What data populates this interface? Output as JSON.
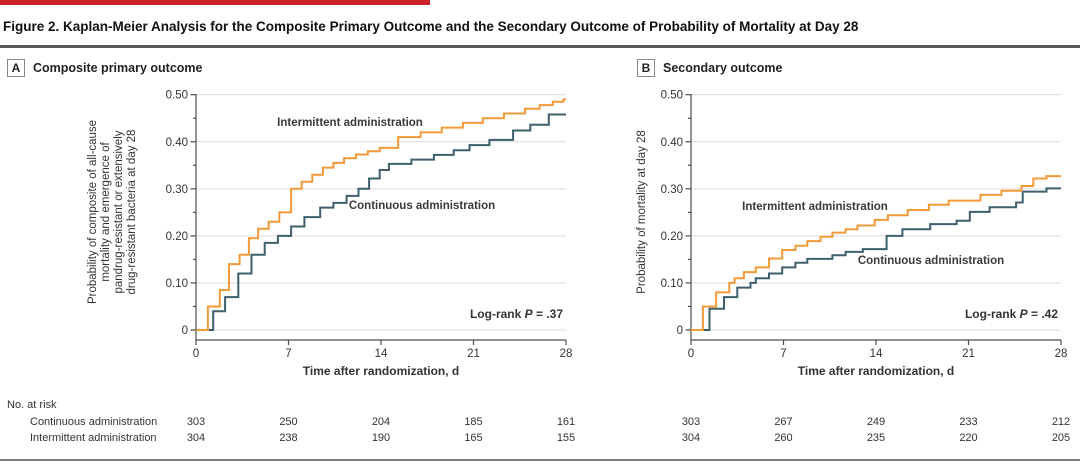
{
  "figure": {
    "title": "Figure 2. Kaplan-Meier Analysis for the Composite Primary Outcome and the Secondary Outcome of Probability of Mortality at Day 28",
    "accent_bar_color": "#cc2128"
  },
  "at_risk_header": "No. at risk",
  "colors": {
    "intermittent": "#f29a38",
    "continuous": "#3e5f6d",
    "grid": "#dcdcdc",
    "axis": "#4d4d4d",
    "text": "#333333"
  },
  "chart_data": [
    {
      "type": "line",
      "step": true,
      "panel_label": "A",
      "panel_title": "Composite primary outcome",
      "xlabel": "Time after randomization, d",
      "ylabel_lines": [
        "Probability of composite of all-cause",
        "mortality and emergence of",
        "pandrug-resistant or extensively",
        "drug-resistant bacteria at day 28"
      ],
      "xlim": [
        0,
        28
      ],
      "ylim": [
        0,
        0.5
      ],
      "xticks": [
        0,
        7,
        14,
        21,
        28
      ],
      "yticks": [
        0,
        0.1,
        0.2,
        0.3,
        0.4,
        0.5
      ],
      "ytick_labels": [
        "0",
        "0.10",
        "0.20",
        "0.30",
        "0.40",
        "0.50"
      ],
      "grid": true,
      "legend_position": "inline-labels",
      "log_rank": {
        "pre": "Log-rank ",
        "p": "P",
        "post": " = .37"
      },
      "series": [
        {
          "name": "Intermittent administration",
          "color_key": "intermittent",
          "points": [
            [
              0,
              0
            ],
            [
              0.9,
              0.05
            ],
            [
              1.8,
              0.085
            ],
            [
              2.5,
              0.14
            ],
            [
              3.3,
              0.16
            ],
            [
              4,
              0.195
            ],
            [
              4.7,
              0.215
            ],
            [
              5.5,
              0.23
            ],
            [
              6.3,
              0.25
            ],
            [
              7.2,
              0.3
            ],
            [
              8,
              0.315
            ],
            [
              8.8,
              0.33
            ],
            [
              9.6,
              0.345
            ],
            [
              10.4,
              0.355
            ],
            [
              11.2,
              0.365
            ],
            [
              12.1,
              0.373
            ],
            [
              13,
              0.38
            ],
            [
              13.9,
              0.387
            ],
            [
              15.3,
              0.41
            ],
            [
              17,
              0.42
            ],
            [
              18.6,
              0.43
            ],
            [
              20.2,
              0.44
            ],
            [
              21.7,
              0.45
            ],
            [
              23.3,
              0.46
            ],
            [
              24.9,
              0.47
            ],
            [
              26,
              0.478
            ],
            [
              27,
              0.485
            ],
            [
              27.8,
              0.49
            ]
          ]
        },
        {
          "name": "Continuous administration",
          "color_key": "continuous",
          "points": [
            [
              0,
              0
            ],
            [
              1.3,
              0.04
            ],
            [
              2.2,
              0.07
            ],
            [
              3.2,
              0.12
            ],
            [
              4.2,
              0.16
            ],
            [
              5.2,
              0.185
            ],
            [
              6.2,
              0.2
            ],
            [
              7.2,
              0.22
            ],
            [
              8.2,
              0.24
            ],
            [
              9.4,
              0.26
            ],
            [
              10.4,
              0.27
            ],
            [
              11.4,
              0.285
            ],
            [
              12.3,
              0.3
            ],
            [
              13.1,
              0.322
            ],
            [
              13.9,
              0.34
            ],
            [
              14.6,
              0.353
            ],
            [
              16.3,
              0.362
            ],
            [
              18,
              0.372
            ],
            [
              19.5,
              0.382
            ],
            [
              20.7,
              0.393
            ],
            [
              22.2,
              0.404
            ],
            [
              24,
              0.424
            ],
            [
              25.3,
              0.436
            ],
            [
              26.7,
              0.458
            ]
          ]
        }
      ],
      "at_risk_rows": [
        {
          "label": "Continuous administration",
          "values": [
            303,
            250,
            204,
            185,
            161
          ]
        },
        {
          "label": "Intermittent administration",
          "values": [
            304,
            238,
            190,
            165,
            155
          ]
        }
      ]
    },
    {
      "type": "line",
      "step": true,
      "panel_label": "B",
      "panel_title": "Secondary outcome",
      "xlabel": "Time after randomization, d",
      "ylabel_lines": [
        "Probability of mortality at day 28"
      ],
      "xlim": [
        0,
        28
      ],
      "ylim": [
        0,
        0.5
      ],
      "xticks": [
        0,
        7,
        14,
        21,
        28
      ],
      "yticks": [
        0,
        0.1,
        0.2,
        0.3,
        0.4,
        0.5
      ],
      "ytick_labels": [
        "0",
        "0.10",
        "0.20",
        "0.30",
        "0.40",
        "0.50"
      ],
      "grid": true,
      "legend_position": "inline-labels",
      "log_rank": {
        "pre": "Log-rank ",
        "p": "P",
        "post": " = .42"
      },
      "series": [
        {
          "name": "Intermittent administration",
          "color_key": "intermittent",
          "points": [
            [
              0,
              0
            ],
            [
              0.9,
              0.05
            ],
            [
              1.9,
              0.08
            ],
            [
              2.9,
              0.1
            ],
            [
              3.3,
              0.11
            ],
            [
              4,
              0.123
            ],
            [
              4.9,
              0.133
            ],
            [
              5.9,
              0.152
            ],
            [
              6.9,
              0.17
            ],
            [
              7.9,
              0.179
            ],
            [
              8.8,
              0.189
            ],
            [
              9.8,
              0.198
            ],
            [
              10.7,
              0.207
            ],
            [
              11.7,
              0.214
            ],
            [
              12.6,
              0.222
            ],
            [
              13.9,
              0.234
            ],
            [
              14.9,
              0.244
            ],
            [
              16.4,
              0.255
            ],
            [
              18,
              0.266
            ],
            [
              19.5,
              0.275
            ],
            [
              21.9,
              0.287
            ],
            [
              23.5,
              0.296
            ],
            [
              25,
              0.306
            ],
            [
              25.9,
              0.322
            ],
            [
              26.9,
              0.327
            ]
          ]
        },
        {
          "name": "Continuous administration",
          "color_key": "continuous",
          "points": [
            [
              0,
              0
            ],
            [
              1.4,
              0.045
            ],
            [
              2.5,
              0.07
            ],
            [
              3.5,
              0.09
            ],
            [
              4.5,
              0.1
            ],
            [
              4.9,
              0.11
            ],
            [
              5.9,
              0.12
            ],
            [
              6.9,
              0.133
            ],
            [
              7.9,
              0.143
            ],
            [
              8.8,
              0.151
            ],
            [
              10.7,
              0.159
            ],
            [
              11.7,
              0.166
            ],
            [
              13,
              0.172
            ],
            [
              14.8,
              0.2
            ],
            [
              16,
              0.214
            ],
            [
              18.1,
              0.225
            ],
            [
              20.1,
              0.232
            ],
            [
              21.1,
              0.251
            ],
            [
              22.6,
              0.261
            ],
            [
              24.6,
              0.271
            ],
            [
              25.1,
              0.294
            ],
            [
              26.9,
              0.301
            ]
          ]
        }
      ],
      "at_risk_rows": [
        {
          "label": "Continuous administration",
          "values": [
            303,
            267,
            249,
            233,
            212
          ]
        },
        {
          "label": "Intermittent administration",
          "values": [
            304,
            260,
            235,
            220,
            205
          ]
        }
      ]
    }
  ]
}
